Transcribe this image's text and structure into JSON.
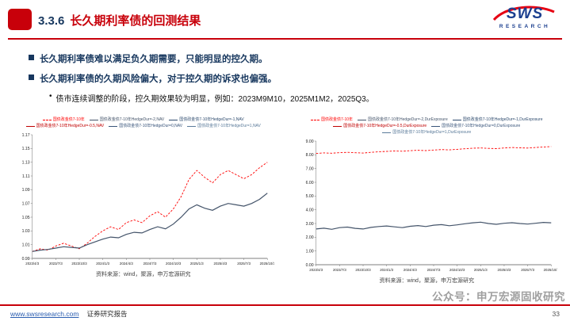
{
  "colors": {
    "accent_red": "#C8000A",
    "brand_blue": "#1B3F8F",
    "heading_navy": "#17375E",
    "series_red": "#FF0000",
    "series_dark": "#44546A"
  },
  "header": {
    "section_number": "3.3.6",
    "title": "长久期利率债的回测结果",
    "logo": {
      "brand": "SWS",
      "sub": "RESEARCH"
    }
  },
  "bullets": [
    {
      "level": 1,
      "text": "长久期利率债难以满足负久期需要，只能明显的控久期。"
    },
    {
      "level": 1,
      "text": "长久期利率债的久期风险偏大，对于控久期的诉求也偏强。"
    },
    {
      "level": 2,
      "text": "债市连续调整的阶段，控久期效果较为明显，例如：2023M9M10，2025M1M2，2025Q3。"
    }
  ],
  "charts": {
    "left_source": "资料来源：wind，聚源，申万宏源研究",
    "right_source": "资料来源：wind，聚源，申万宏源研究"
  },
  "watermark": "公众号：申万宏源固收研究",
  "footer": {
    "url": "www.swsresearch.com",
    "report": "证券研究报告",
    "page": "33"
  },
  "chart_data": [
    {
      "type": "line",
      "title": "",
      "xlabel": "",
      "ylabel": "",
      "grid": false,
      "legend_position": "top",
      "ylim": [
        0.99,
        1.17
      ],
      "y_ticks": [
        0.99,
        1.01,
        1.03,
        1.05,
        1.07,
        1.09,
        1.11,
        1.13,
        1.15,
        1.17
      ],
      "x": [
        "2023/4",
        "2023/5",
        "2023/6",
        "2023/7",
        "2023/8",
        "2023/9",
        "2023/10",
        "2023/11",
        "2023/12",
        "2024/1",
        "2024/2",
        "2024/3",
        "2024/4",
        "2024/5",
        "2024/6",
        "2024/7",
        "2024/8",
        "2024/9",
        "2024/10",
        "2024/11",
        "2024/12",
        "2025/1",
        "2025/2",
        "2025/3",
        "2025/4",
        "2025/5",
        "2025/6",
        "2025/7",
        "2025/8",
        "2025/9",
        "2025/10"
      ],
      "x_tick_labels": [
        "2023/4/3",
        "2023/7/3",
        "2023/10/3",
        "2024/1/3",
        "2024/4/3",
        "2024/7/3",
        "2024/10/3",
        "2025/1/3",
        "2025/4/3",
        "2025/7/3",
        "2025/10/3"
      ],
      "legend": [
        {
          "label": "国债政金债7-10年",
          "color": "#FF0000",
          "dash": true
        },
        {
          "label": "国债政金债7-10年HedgeDur=-2,NAV",
          "color": "#44546A",
          "dash": false
        },
        {
          "label": "国债政金债7-10年HedgeDur=-1,NAV",
          "color": "#2E4B6E",
          "dash": false
        },
        {
          "label": "国债政金债7-10年HedgeDur=-0.5,NAV",
          "color": "#C00000",
          "dash": false
        },
        {
          "label": "国债政金债7-10年HedgeDur=0,NAV",
          "color": "#38547A",
          "dash": false
        },
        {
          "label": "国债政金债7-10年HedgeDur=1,NAV",
          "color": "#5B7B9A",
          "dash": false
        }
      ],
      "series": [
        {
          "name": "国债政金债7-10年",
          "color": "#FF0000",
          "dash": true,
          "values": [
            1.0,
            1.004,
            1.002,
            1.008,
            1.012,
            1.008,
            1.004,
            1.012,
            1.022,
            1.03,
            1.036,
            1.032,
            1.042,
            1.046,
            1.042,
            1.052,
            1.058,
            1.05,
            1.062,
            1.08,
            1.105,
            1.118,
            1.108,
            1.1,
            1.112,
            1.118,
            1.112,
            1.106,
            1.112,
            1.122,
            1.13
          ]
        },
        {
          "name": "国债政金债7-10年HedgeDur=0,NAV",
          "color": "#44546A",
          "dash": false,
          "values": [
            1.0,
            1.002,
            1.003,
            1.005,
            1.007,
            1.006,
            1.005,
            1.01,
            1.014,
            1.018,
            1.021,
            1.02,
            1.025,
            1.028,
            1.027,
            1.032,
            1.036,
            1.033,
            1.04,
            1.05,
            1.062,
            1.068,
            1.063,
            1.06,
            1.066,
            1.07,
            1.068,
            1.066,
            1.07,
            1.076,
            1.085
          ]
        }
      ]
    },
    {
      "type": "line",
      "title": "",
      "xlabel": "",
      "ylabel": "",
      "grid": false,
      "legend_position": "top",
      "ylim": [
        0,
        9
      ],
      "y_ticks": [
        0,
        1,
        2,
        3,
        4,
        5,
        6,
        7,
        8,
        9
      ],
      "x": [
        "2023/4",
        "2023/5",
        "2023/6",
        "2023/7",
        "2023/8",
        "2023/9",
        "2023/10",
        "2023/11",
        "2023/12",
        "2024/1",
        "2024/2",
        "2024/3",
        "2024/4",
        "2024/5",
        "2024/6",
        "2024/7",
        "2024/8",
        "2024/9",
        "2024/10",
        "2024/11",
        "2024/12",
        "2025/1",
        "2025/2",
        "2025/3",
        "2025/4",
        "2025/5",
        "2025/6",
        "2025/7",
        "2025/8",
        "2025/9",
        "2025/10"
      ],
      "x_tick_labels": [
        "2023/4/3",
        "2023/7/3",
        "2023/10/3",
        "2024/1/3",
        "2024/4/3",
        "2024/7/3",
        "2024/10/3",
        "2025/1/3",
        "2025/4/3",
        "2025/7/3",
        "2025/10/3"
      ],
      "legend": [
        {
          "label": "国债政金债7-10年",
          "color": "#FF0000",
          "dash": true
        },
        {
          "label": "国债政金债7-10年HedgeDur=-2,DurExposure",
          "color": "#44546A",
          "dash": false
        },
        {
          "label": "国债政金债7-10年HedgeDur=-1,DurExposure",
          "color": "#2E4B6E",
          "dash": false
        },
        {
          "label": "国债政金债7-10年HedgeDur=-0.5,DurExposure",
          "color": "#C00000",
          "dash": false
        },
        {
          "label": "国债政金债7-10年HedgeDur=0,DurExposure",
          "color": "#38547A",
          "dash": false
        },
        {
          "label": "国债政金债7-10年HedgeDur=1,DurExposure",
          "color": "#5B7B9A",
          "dash": false
        }
      ],
      "series": [
        {
          "name": "国债政金债7-10年",
          "color": "#FF0000",
          "dash": true,
          "values": [
            8.1,
            8.14,
            8.12,
            8.16,
            8.18,
            8.15,
            8.13,
            8.18,
            8.22,
            8.25,
            8.28,
            8.26,
            8.3,
            8.33,
            8.31,
            8.35,
            8.38,
            8.36,
            8.4,
            8.44,
            8.48,
            8.5,
            8.47,
            8.45,
            8.5,
            8.53,
            8.51,
            8.49,
            8.53,
            8.57,
            8.6
          ]
        },
        {
          "name": "国债政金债7-10年HedgeDur=0,DurExposure",
          "color": "#44546A",
          "dash": false,
          "values": [
            2.6,
            2.66,
            2.58,
            2.7,
            2.74,
            2.65,
            2.6,
            2.72,
            2.78,
            2.82,
            2.76,
            2.7,
            2.8,
            2.85,
            2.78,
            2.88,
            2.92,
            2.84,
            2.9,
            2.98,
            3.05,
            3.1,
            3.0,
            2.94,
            3.02,
            3.06,
            3.0,
            2.96,
            3.02,
            3.08,
            3.05
          ]
        }
      ]
    }
  ]
}
